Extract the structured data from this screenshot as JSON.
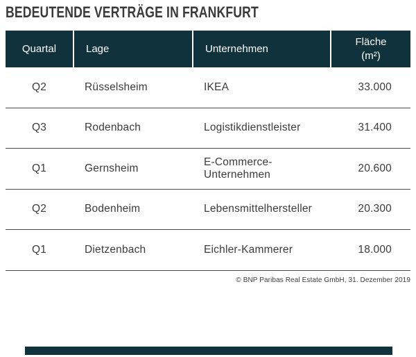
{
  "title": "BEDEUTENDE VERTRÄGE IN FRANKFURT",
  "table": {
    "columns": [
      {
        "label": "Quartal"
      },
      {
        "label": "Lage"
      },
      {
        "label": "Unternehmen"
      },
      {
        "label": "Fläche",
        "unit": "(m²)"
      }
    ],
    "rows": [
      {
        "quartal": "Q2",
        "lage": "Rüsselsheim",
        "unternehmen": "IKEA",
        "flaeche": "33.000"
      },
      {
        "quartal": "Q3",
        "lage": "Rodenbach",
        "unternehmen": "Logistikdienstleister",
        "flaeche": "31.400"
      },
      {
        "quartal": "Q1",
        "lage": "Gernsheim",
        "unternehmen": "E-Commerce-Unternehmen",
        "flaeche": "20.600"
      },
      {
        "quartal": "Q2",
        "lage": "Bodenheim",
        "unternehmen": "Lebensmittelhersteller",
        "flaeche": "20.300"
      },
      {
        "quartal": "Q1",
        "lage": "Dietzenbach",
        "unternehmen": "Eichler-Kammerer",
        "flaeche": "18.000"
      }
    ]
  },
  "footer": {
    "copyright": "© BNP Paribas Real Estate GmbH, 31. Dezember 2019"
  },
  "colors": {
    "header_bg": "#10323C",
    "header_text": "#FFFFFF",
    "row_divider": "#4D4D4D",
    "body_text": "#3C3C3B",
    "title_text": "#3A3A39",
    "brand_bar": "#10323C"
  },
  "chart_data": {
    "type": "table",
    "title": "BEDEUTENDE VERTRÄGE IN FRANKFURT",
    "columns": [
      "Quartal",
      "Lage",
      "Unternehmen",
      "Fläche (m²)"
    ],
    "rows": [
      [
        "Q2",
        "Rüsselsheim",
        "IKEA",
        "33.000"
      ],
      [
        "Q3",
        "Rodenbach",
        "Logistikdienstleister",
        "31.400"
      ],
      [
        "Q1",
        "Gernsheim",
        "E-Commerce-Unternehmen",
        "20.600"
      ],
      [
        "Q2",
        "Bodenheim",
        "Lebensmittelhersteller",
        "20.300"
      ],
      [
        "Q1",
        "Dietzenbach",
        "Eichler-Kammerer",
        "18.000"
      ]
    ],
    "source": "© BNP Paribas Real Estate GmbH, 31. Dezember 2019"
  }
}
